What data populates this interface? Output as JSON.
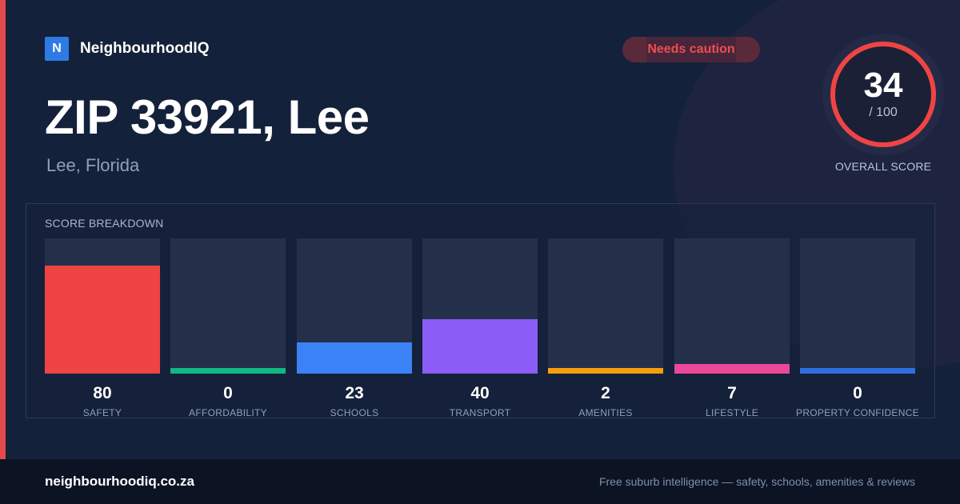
{
  "brand": {
    "badge": "N",
    "name": "NeighbourhoodIQ"
  },
  "status_badge": {
    "label": "Needs caution",
    "color": "#ef4d4d"
  },
  "location": {
    "title": "ZIP 33921, Lee",
    "subtitle": "Lee, Florida"
  },
  "overall": {
    "score": "34",
    "max": "/ 100",
    "label": "OVERALL SCORE",
    "ring_color": "#ef4444"
  },
  "breakdown": {
    "heading": "SCORE BREAKDOWN",
    "items": [
      {
        "label": "SAFETY",
        "value": 80,
        "display": "80",
        "color": "#ef4444"
      },
      {
        "label": "AFFORDABILITY",
        "value": 0,
        "display": "0",
        "color": "#10b981"
      },
      {
        "label": "SCHOOLS",
        "value": 23,
        "display": "23",
        "color": "#3b82f6"
      },
      {
        "label": "TRANSPORT",
        "value": 40,
        "display": "40",
        "color": "#8b5cf6"
      },
      {
        "label": "AMENITIES",
        "value": 2,
        "display": "2",
        "color": "#f59e0b"
      },
      {
        "label": "LIFESTYLE",
        "value": 7,
        "display": "7",
        "color": "#ec4899"
      },
      {
        "label": "PROPERTY CONFIDENCE",
        "value": 0,
        "display": "0",
        "color": "#2f6fde"
      }
    ]
  },
  "footer": {
    "site": "neighbourhoodiq.co.za",
    "tagline": "Free suburb intelligence — safety, schools, amenities & reviews"
  }
}
